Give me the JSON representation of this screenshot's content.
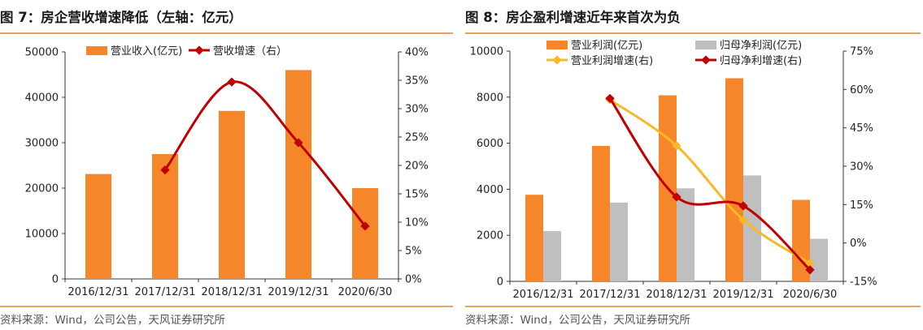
{
  "figures": [
    {
      "title": "图 7：房企营收增速降低（左轴：亿元）",
      "source": "资料来源：Wind，公司公告，天风证券研究所"
    },
    {
      "title": "图 8：房企盈利增速近年来首次为负",
      "source": "资料来源：Wind，公司公告，天风证券研究所"
    }
  ],
  "chart_data": [
    {
      "type": "bar",
      "categories": [
        "2016/12/31",
        "2017/12/31",
        "2018/12/31",
        "2019/12/31",
        "2020/6/30"
      ],
      "series": [
        {
          "name": "营业收入(亿元)",
          "type": "bar",
          "axis": "left",
          "color": "#f5872a",
          "values": [
            23100,
            27500,
            37000,
            46000,
            20000
          ]
        },
        {
          "name": "营收增速（右）",
          "type": "line",
          "axis": "right",
          "color": "#c00000",
          "values": [
            null,
            19.2,
            34.7,
            24.0,
            9.3
          ]
        }
      ],
      "y_left": {
        "min": 0,
        "max": 50000,
        "ticks": [
          "0",
          "10000",
          "20000",
          "30000",
          "40000",
          "50000"
        ]
      },
      "y_right": {
        "min": 0,
        "max": 40,
        "ticks": [
          "0%",
          "5%",
          "10%",
          "15%",
          "20%",
          "25%",
          "30%",
          "35%",
          "40%"
        ]
      },
      "legend_position": "top-left",
      "grid": false
    },
    {
      "type": "bar",
      "categories": [
        "2016/12/31",
        "2017/12/31",
        "2018/12/31",
        "2019/12/31",
        "2020/6/30"
      ],
      "series": [
        {
          "name": "营业利润(亿元)",
          "type": "bar",
          "axis": "left",
          "color": "#f5872a",
          "values": [
            3760,
            5880,
            8080,
            8820,
            3540
          ]
        },
        {
          "name": "归母净利润(亿元)",
          "type": "bar",
          "axis": "left",
          "color": "#bfbfbf",
          "values": [
            2180,
            3420,
            4040,
            4600,
            1850
          ]
        },
        {
          "name": "营业利润增速(右)",
          "type": "line",
          "axis": "right",
          "color": "#f7b928",
          "values": [
            null,
            56.0,
            38.0,
            9.0,
            -8.0
          ]
        },
        {
          "name": "归母净利增速(右)",
          "type": "line",
          "axis": "right",
          "color": "#c00000",
          "values": [
            null,
            56.5,
            18.0,
            14.5,
            -10.5
          ]
        }
      ],
      "y_left": {
        "min": 0,
        "max": 10000,
        "ticks": [
          "0",
          "2000",
          "4000",
          "6000",
          "8000",
          "10000"
        ]
      },
      "y_right": {
        "min": -15,
        "max": 75,
        "ticks": [
          "-15%",
          "0%",
          "15%",
          "30%",
          "45%",
          "60%",
          "75%"
        ]
      },
      "legend_position": "top",
      "grid": false
    }
  ]
}
